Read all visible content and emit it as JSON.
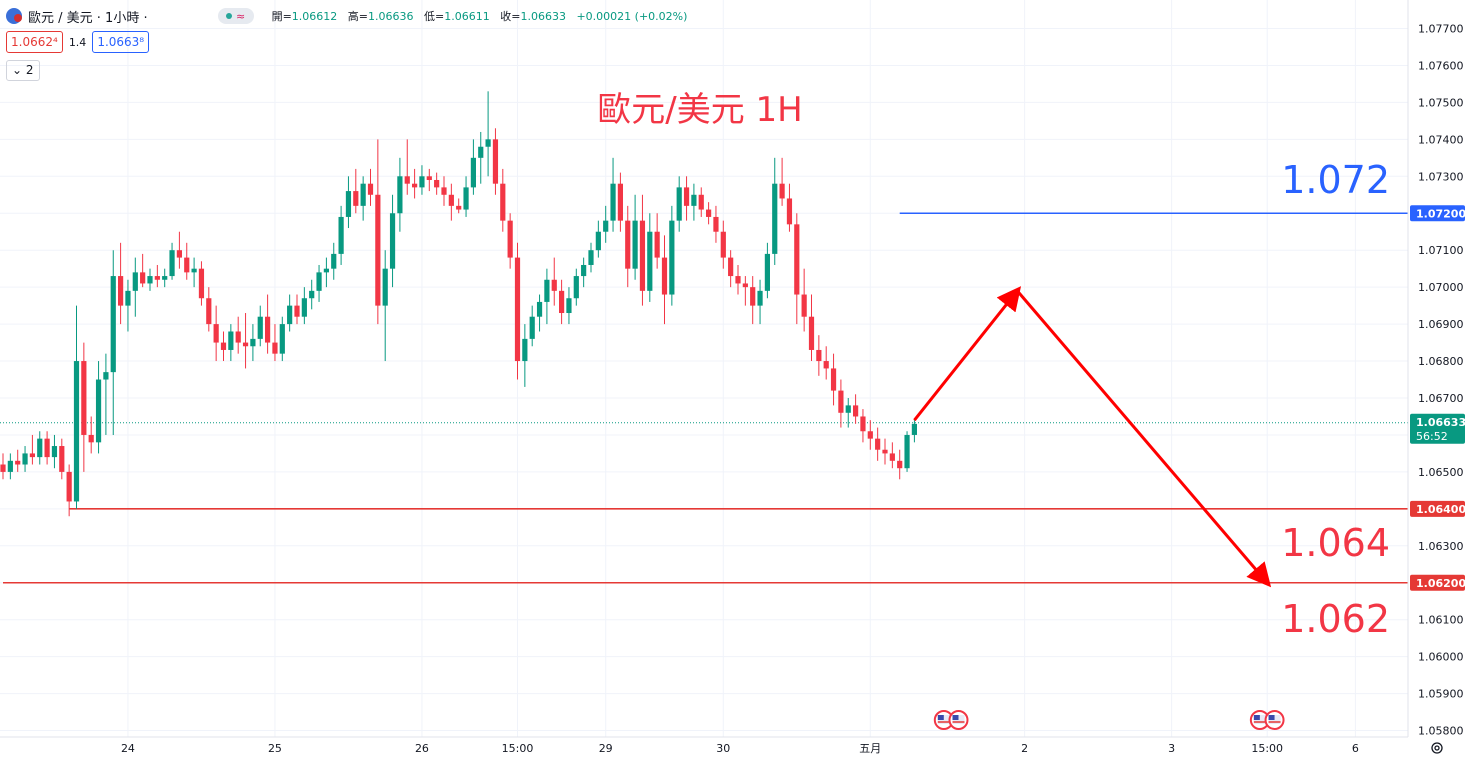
{
  "header": {
    "symbol": "歐元 / 美元 · 1小時 ·",
    "wave_label": "≈",
    "ohlc": [
      {
        "label": "開=",
        "value": "1.06612"
      },
      {
        "label": "高=",
        "value": "1.06636"
      },
      {
        "label": "低=",
        "value": "1.06611"
      },
      {
        "label": "收=",
        "value": "1.06633"
      },
      {
        "label": "",
        "value": "+0.00021 (+0.02%)"
      }
    ],
    "sell_price": "1.0662⁴",
    "spread": "1.4",
    "buy_price": "1.0663⁸",
    "indicator_count": "2"
  },
  "colors": {
    "up": "#089981",
    "down": "#f23645",
    "blue_line": "#2962ff",
    "red_line": "#e53935",
    "annotation_red": "#f23645",
    "annotation_blue": "#2962ff"
  },
  "chart_data": {
    "type": "candlestick",
    "title": "歐元/美元 1H",
    "ylim": [
      1.0578,
      1.0778
    ],
    "y_ticks": [
      "1.07700",
      "1.07600",
      "1.07500",
      "1.07400",
      "1.07300",
      "1.07200",
      "1.07100",
      "1.07000",
      "1.06900",
      "1.06800",
      "1.06700",
      "1.06600",
      "1.06500",
      "1.06400",
      "1.06300",
      "1.06200",
      "1.06100",
      "1.06000",
      "1.05900",
      "1.05800"
    ],
    "x_ticks": [
      {
        "label": "24",
        "index": 17
      },
      {
        "label": "25",
        "index": 37
      },
      {
        "label": "26",
        "index": 57
      },
      {
        "label": "15:00",
        "index": 70
      },
      {
        "label": "29",
        "index": 82
      },
      {
        "label": "30",
        "index": 98
      },
      {
        "label": "五月",
        "index": 118
      },
      {
        "label": "2",
        "index": 139
      },
      {
        "label": "3",
        "index": 159
      },
      {
        "label": "15:00",
        "index": 172
      },
      {
        "label": "6",
        "index": 184
      }
    ],
    "candles": [
      [
        1.0652,
        1.0655,
        1.0648,
        1.065
      ],
      [
        1.065,
        1.0655,
        1.0648,
        1.0653
      ],
      [
        1.0653,
        1.0656,
        1.065,
        1.0652
      ],
      [
        1.0652,
        1.0657,
        1.065,
        1.0655
      ],
      [
        1.0655,
        1.066,
        1.0652,
        1.0654
      ],
      [
        1.0654,
        1.0661,
        1.0652,
        1.0659
      ],
      [
        1.0659,
        1.0661,
        1.0652,
        1.0654
      ],
      [
        1.0654,
        1.066,
        1.0651,
        1.0657
      ],
      [
        1.0657,
        1.0659,
        1.0648,
        1.065
      ],
      [
        1.065,
        1.0652,
        1.0638,
        1.0642
      ],
      [
        1.0642,
        1.0695,
        1.064,
        1.068
      ],
      [
        1.068,
        1.0685,
        1.065,
        1.066
      ],
      [
        1.066,
        1.0665,
        1.0655,
        1.0658
      ],
      [
        1.0658,
        1.068,
        1.0655,
        1.0675
      ],
      [
        1.0675,
        1.0682,
        1.066,
        1.0677
      ],
      [
        1.0677,
        1.071,
        1.066,
        1.0703
      ],
      [
        1.0703,
        1.0712,
        1.069,
        1.0695
      ],
      [
        1.0695,
        1.0702,
        1.0688,
        1.0699
      ],
      [
        1.0699,
        1.0708,
        1.0692,
        1.0704
      ],
      [
        1.0704,
        1.0709,
        1.07,
        1.0701
      ],
      [
        1.0701,
        1.0705,
        1.0699,
        1.0703
      ],
      [
        1.0703,
        1.0706,
        1.07,
        1.0702
      ],
      [
        1.0702,
        1.0705,
        1.07,
        1.0703
      ],
      [
        1.0703,
        1.0712,
        1.0702,
        1.071
      ],
      [
        1.071,
        1.0715,
        1.0705,
        1.0708
      ],
      [
        1.0708,
        1.0712,
        1.0702,
        1.0704
      ],
      [
        1.0704,
        1.0708,
        1.07,
        1.0705
      ],
      [
        1.0705,
        1.0707,
        1.0695,
        1.0697
      ],
      [
        1.0697,
        1.07,
        1.0688,
        1.069
      ],
      [
        1.069,
        1.0695,
        1.068,
        1.0685
      ],
      [
        1.0685,
        1.0688,
        1.068,
        1.0683
      ],
      [
        1.0683,
        1.069,
        1.068,
        1.0688
      ],
      [
        1.0688,
        1.0692,
        1.0682,
        1.0685
      ],
      [
        1.0685,
        1.0693,
        1.0678,
        1.0684
      ],
      [
        1.0684,
        1.069,
        1.068,
        1.0686
      ],
      [
        1.0686,
        1.0695,
        1.0684,
        1.0692
      ],
      [
        1.0692,
        1.0698,
        1.0682,
        1.0685
      ],
      [
        1.0685,
        1.069,
        1.068,
        1.0682
      ],
      [
        1.0682,
        1.0692,
        1.068,
        1.069
      ],
      [
        1.069,
        1.0698,
        1.0688,
        1.0695
      ],
      [
        1.0695,
        1.0698,
        1.069,
        1.0692
      ],
      [
        1.0692,
        1.07,
        1.069,
        1.0697
      ],
      [
        1.0697,
        1.0702,
        1.0694,
        1.0699
      ],
      [
        1.0699,
        1.0706,
        1.0696,
        1.0704
      ],
      [
        1.0704,
        1.0708,
        1.07,
        1.0705
      ],
      [
        1.0705,
        1.0712,
        1.0702,
        1.0709
      ],
      [
        1.0709,
        1.0722,
        1.0706,
        1.0719
      ],
      [
        1.0719,
        1.073,
        1.0716,
        1.0726
      ],
      [
        1.0726,
        1.0732,
        1.072,
        1.0722
      ],
      [
        1.0722,
        1.073,
        1.0718,
        1.0728
      ],
      [
        1.0728,
        1.0732,
        1.0722,
        1.0725
      ],
      [
        1.0725,
        1.074,
        1.069,
        1.0695
      ],
      [
        1.0695,
        1.071,
        1.068,
        1.0705
      ],
      [
        1.0705,
        1.0725,
        1.07,
        1.072
      ],
      [
        1.072,
        1.0735,
        1.0715,
        1.073
      ],
      [
        1.073,
        1.074,
        1.0725,
        1.0728
      ],
      [
        1.0728,
        1.0732,
        1.0724,
        1.0727
      ],
      [
        1.0727,
        1.0733,
        1.0725,
        1.073
      ],
      [
        1.073,
        1.0732,
        1.0726,
        1.0729
      ],
      [
        1.0729,
        1.0731,
        1.0725,
        1.0727
      ],
      [
        1.0727,
        1.073,
        1.0722,
        1.0725
      ],
      [
        1.0725,
        1.0728,
        1.0718,
        1.0722
      ],
      [
        1.0722,
        1.0724,
        1.072,
        1.0721
      ],
      [
        1.0721,
        1.073,
        1.0719,
        1.0727
      ],
      [
        1.0727,
        1.074,
        1.0725,
        1.0735
      ],
      [
        1.0735,
        1.0742,
        1.0728,
        1.0738
      ],
      [
        1.0738,
        1.0753,
        1.073,
        1.074
      ],
      [
        1.074,
        1.0743,
        1.0725,
        1.0728
      ],
      [
        1.0728,
        1.0732,
        1.0715,
        1.0718
      ],
      [
        1.0718,
        1.072,
        1.0705,
        1.0708
      ],
      [
        1.0708,
        1.0712,
        1.0675,
        1.068
      ],
      [
        1.068,
        1.069,
        1.0673,
        1.0686
      ],
      [
        1.0686,
        1.0695,
        1.0684,
        1.0692
      ],
      [
        1.0692,
        1.0698,
        1.0688,
        1.0696
      ],
      [
        1.0696,
        1.0705,
        1.069,
        1.0702
      ],
      [
        1.0702,
        1.0708,
        1.0695,
        1.0699
      ],
      [
        1.0699,
        1.0702,
        1.069,
        1.0693
      ],
      [
        1.0693,
        1.07,
        1.069,
        1.0697
      ],
      [
        1.0697,
        1.0705,
        1.0695,
        1.0703
      ],
      [
        1.0703,
        1.0708,
        1.07,
        1.0706
      ],
      [
        1.0706,
        1.0712,
        1.0704,
        1.071
      ],
      [
        1.071,
        1.0718,
        1.0708,
        1.0715
      ],
      [
        1.0715,
        1.0722,
        1.0712,
        1.0718
      ],
      [
        1.0718,
        1.0735,
        1.0715,
        1.0728
      ],
      [
        1.0728,
        1.0731,
        1.0715,
        1.0718
      ],
      [
        1.0718,
        1.0722,
        1.07,
        1.0705
      ],
      [
        1.0705,
        1.0725,
        1.0702,
        1.0718
      ],
      [
        1.0718,
        1.0725,
        1.0695,
        1.0699
      ],
      [
        1.0699,
        1.072,
        1.0696,
        1.0715
      ],
      [
        1.0715,
        1.072,
        1.0705,
        1.0708
      ],
      [
        1.0708,
        1.0714,
        1.069,
        1.0698
      ],
      [
        1.0698,
        1.0722,
        1.0695,
        1.0718
      ],
      [
        1.0718,
        1.073,
        1.0715,
        1.0727
      ],
      [
        1.0727,
        1.073,
        1.0718,
        1.0722
      ],
      [
        1.0722,
        1.0728,
        1.0718,
        1.0725
      ],
      [
        1.0725,
        1.0727,
        1.0719,
        1.0721
      ],
      [
        1.0721,
        1.0723,
        1.0717,
        1.0719
      ],
      [
        1.0719,
        1.0722,
        1.0712,
        1.0715
      ],
      [
        1.0715,
        1.0718,
        1.0705,
        1.0708
      ],
      [
        1.0708,
        1.071,
        1.07,
        1.0703
      ],
      [
        1.0703,
        1.0706,
        1.0698,
        1.0701
      ],
      [
        1.0701,
        1.0703,
        1.0695,
        1.07
      ],
      [
        1.07,
        1.0703,
        1.069,
        1.0695
      ],
      [
        1.0695,
        1.0702,
        1.069,
        1.0699
      ],
      [
        1.0699,
        1.0712,
        1.0697,
        1.0709
      ],
      [
        1.0709,
        1.0735,
        1.0706,
        1.0728
      ],
      [
        1.0728,
        1.0735,
        1.0722,
        1.0724
      ],
      [
        1.0724,
        1.0728,
        1.0715,
        1.0717
      ],
      [
        1.0717,
        1.072,
        1.069,
        1.0698
      ],
      [
        1.0698,
        1.0705,
        1.0688,
        1.0692
      ],
      [
        1.0692,
        1.0698,
        1.068,
        1.0683
      ],
      [
        1.0683,
        1.0687,
        1.0676,
        1.068
      ],
      [
        1.068,
        1.0684,
        1.0675,
        1.0678
      ],
      [
        1.0678,
        1.0682,
        1.0668,
        1.0672
      ],
      [
        1.0672,
        1.0675,
        1.0662,
        1.0666
      ],
      [
        1.0666,
        1.067,
        1.0662,
        1.0668
      ],
      [
        1.0668,
        1.0671,
        1.0663,
        1.0665
      ],
      [
        1.0665,
        1.0667,
        1.0658,
        1.0661
      ],
      [
        1.0661,
        1.0664,
        1.0656,
        1.0659
      ],
      [
        1.0659,
        1.0662,
        1.0653,
        1.0656
      ],
      [
        1.0656,
        1.0659,
        1.0652,
        1.0655
      ],
      [
        1.0655,
        1.0658,
        1.0651,
        1.0653
      ],
      [
        1.0653,
        1.0656,
        1.0648,
        1.0651
      ],
      [
        1.0651,
        1.0661,
        1.065,
        1.066
      ],
      [
        1.066,
        1.0664,
        1.0658,
        1.0663
      ]
    ],
    "horizontal_lines": [
      {
        "price": 1.072,
        "label": "1.07200",
        "color": "#2962ff",
        "start_index": 122
      },
      {
        "price": 1.064,
        "label": "1.06400",
        "color": "#e53935",
        "start_index": 9
      },
      {
        "price": 1.062,
        "label": "1.06200",
        "color": "#e53935",
        "start_index": 0
      }
    ],
    "last_price": {
      "price": 1.06633,
      "label": "1.06633",
      "countdown": "56:52"
    },
    "annotations": [
      {
        "text": "1.072",
        "color": "#2962ff"
      },
      {
        "text": "1.064",
        "color": "#f23645"
      },
      {
        "text": "1.062",
        "color": "#f23645"
      }
    ],
    "arrows": [
      {
        "from": [
          124,
          1.0664
        ],
        "to": [
          138,
          1.0699
        ]
      },
      {
        "from": [
          138,
          1.0699
        ],
        "to": [
          172,
          1.062
        ]
      }
    ],
    "event_flags": [
      128,
      130,
      171,
      173
    ]
  }
}
